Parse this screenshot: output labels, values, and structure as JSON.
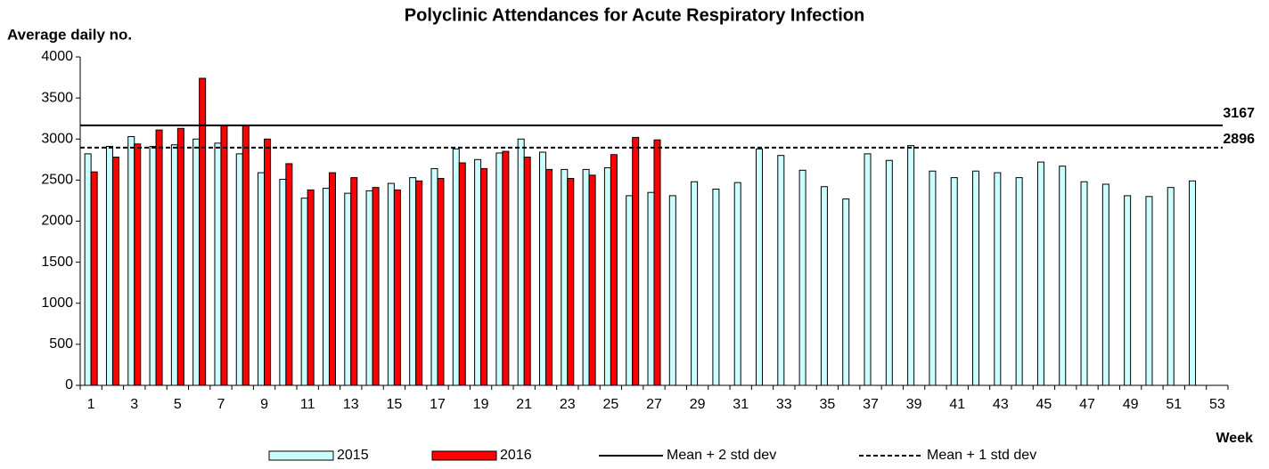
{
  "chart_data": {
    "type": "bar",
    "title": "Polyclinic Attendances for Acute Respiratory Infection",
    "y_label": "Average daily no.",
    "x_label": "Week",
    "categories": [
      1,
      null,
      3,
      null,
      5,
      null,
      7,
      null,
      9,
      null,
      11,
      null,
      13,
      null,
      15,
      null,
      17,
      null,
      19,
      null,
      21,
      null,
      23,
      null,
      25,
      null,
      27,
      null,
      29,
      null,
      31,
      null,
      33,
      null,
      35,
      null,
      37,
      null,
      39,
      null,
      41,
      null,
      43,
      null,
      45,
      null,
      47,
      null,
      49,
      null,
      51,
      null,
      53
    ],
    "series": [
      {
        "name": "2015",
        "color": "#ccffff",
        "values": [
          2820,
          2910,
          3030,
          2910,
          2930,
          3000,
          2950,
          2820,
          2590,
          2510,
          2280,
          2400,
          2340,
          2370,
          2460,
          2530,
          2640,
          2880,
          2750,
          2830,
          3000,
          2840,
          2630,
          2630,
          2650,
          2310,
          2350,
          2310,
          2480,
          2390,
          2470,
          2880,
          2800,
          2620,
          2420,
          2270,
          2820,
          2740,
          2920,
          2610,
          2530,
          2610,
          2590,
          2530,
          2720,
          2670,
          2480,
          2450,
          2310,
          2300,
          2410,
          2490,
          null
        ]
      },
      {
        "name": "2016",
        "color": "#ff0000",
        "values": [
          2600,
          2780,
          2940,
          3110,
          3130,
          3740,
          3170,
          3160,
          3000,
          2700,
          2380,
          2590,
          2530,
          2410,
          2380,
          2490,
          2520,
          2710,
          2640,
          2850,
          2780,
          2630,
          2520,
          2560,
          2810,
          3020,
          2990,
          null,
          null,
          null,
          null,
          null,
          null,
          null,
          null,
          null,
          null,
          null,
          null,
          null,
          null,
          null,
          null,
          null,
          null,
          null,
          null,
          null,
          null,
          null,
          null,
          null,
          null
        ]
      }
    ],
    "ref_lines": [
      {
        "name": "Mean + 2 std dev",
        "value": 3167,
        "style": "solid"
      },
      {
        "name": "Mean + 1 std dev",
        "value": 2896,
        "style": "dashed"
      }
    ],
    "ylim": [
      0,
      4000
    ],
    "yticks": [
      0,
      500,
      1000,
      1500,
      2000,
      2500,
      3000,
      3500,
      4000
    ],
    "grid": false,
    "legend": "bottom"
  }
}
